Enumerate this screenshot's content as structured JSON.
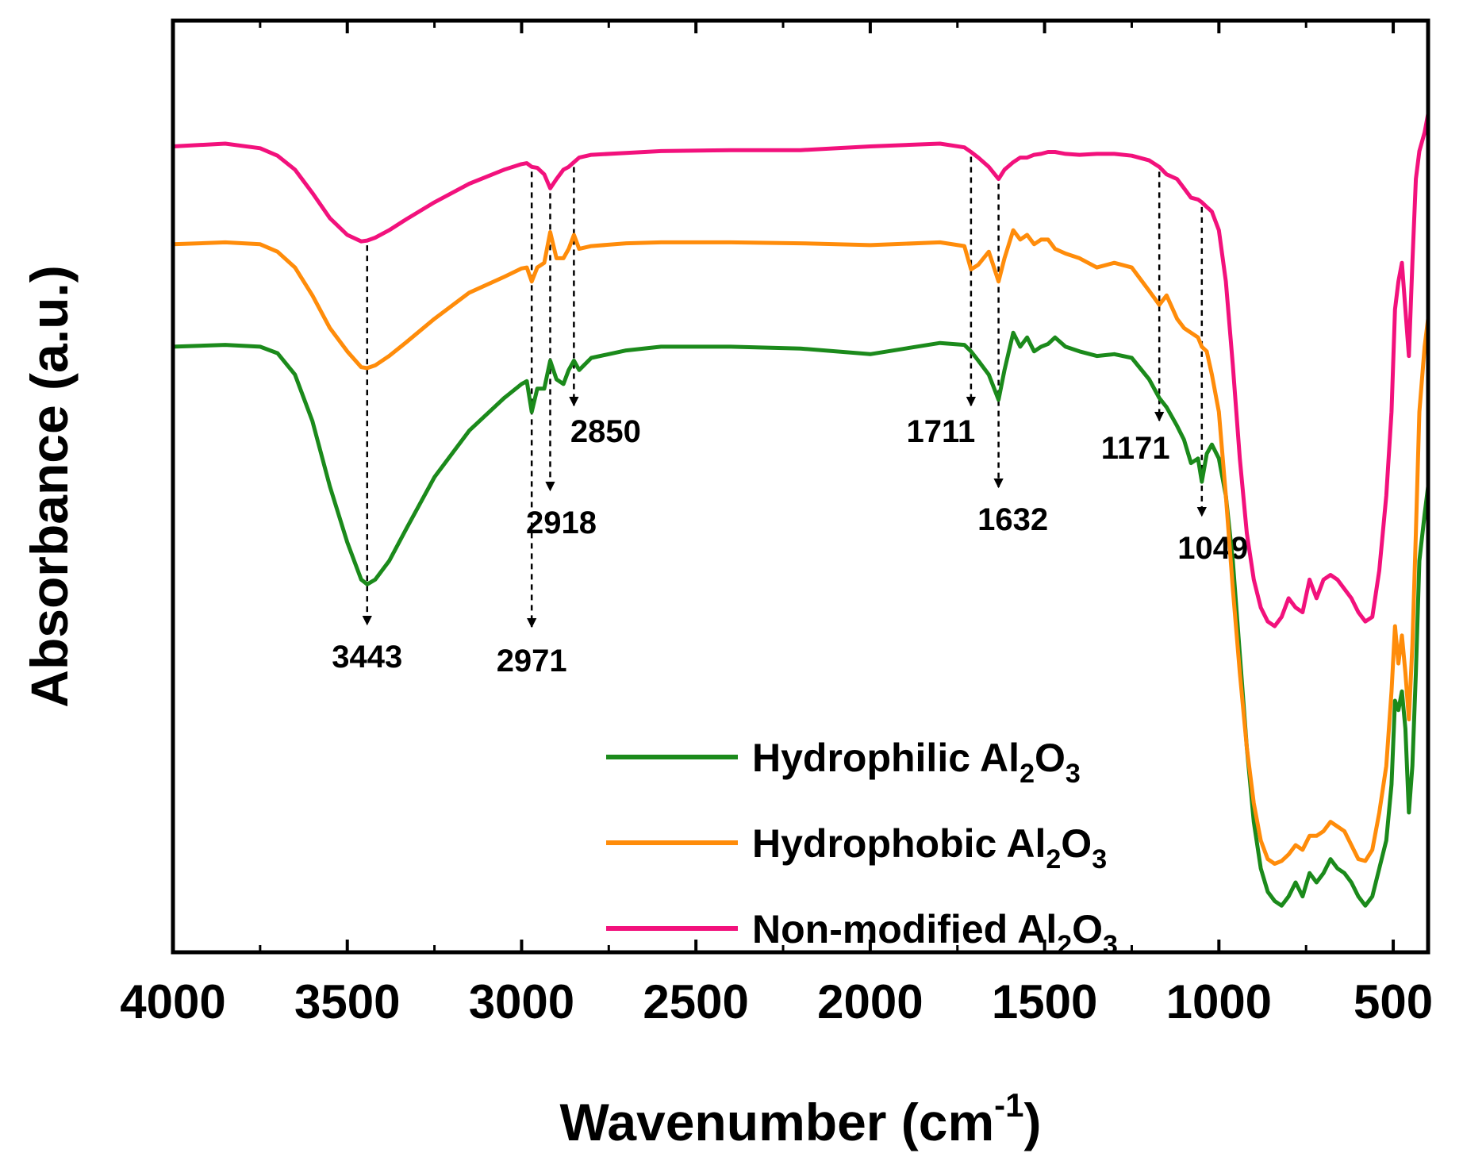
{
  "chart_data": {
    "type": "line",
    "title": "",
    "xlabel": "Wavenumber (cm",
    "xlabel_sup": "-1",
    "xlabel_close": ")",
    "ylabel": "Absorbance (a.u.)",
    "xlim": [
      4000,
      400
    ],
    "x_reversed": true,
    "x_ticks": [
      4000,
      3500,
      3000,
      2500,
      2000,
      1500,
      1000,
      500
    ],
    "ylim": [
      0,
      100
    ],
    "y_ticks_shown": false,
    "grid": false,
    "legend_position": "bottom-right",
    "series": [
      {
        "name": "Hydrophilic Al",
        "formula_parts": [
          "2",
          "O",
          "3"
        ],
        "color": "#1b8a1b",
        "x": [
          4000,
          3850,
          3750,
          3700,
          3650,
          3600,
          3550,
          3500,
          3460,
          3443,
          3420,
          3380,
          3330,
          3250,
          3150,
          3050,
          3000,
          2985,
          2971,
          2955,
          2935,
          2918,
          2900,
          2880,
          2865,
          2850,
          2835,
          2800,
          2700,
          2600,
          2400,
          2200,
          2000,
          1800,
          1730,
          1711,
          1690,
          1660,
          1632,
          1615,
          1590,
          1570,
          1550,
          1530,
          1510,
          1490,
          1470,
          1440,
          1400,
          1350,
          1300,
          1250,
          1200,
          1171,
          1150,
          1120,
          1100,
          1080,
          1060,
          1049,
          1035,
          1020,
          1000,
          980,
          960,
          940,
          920,
          900,
          880,
          860,
          840,
          820,
          800,
          780,
          760,
          740,
          720,
          700,
          680,
          660,
          640,
          620,
          600,
          580,
          560,
          540,
          520,
          505,
          495,
          485,
          475,
          465,
          455,
          445,
          435,
          425,
          410,
          400
        ],
        "y": [
          65.0,
          65.2,
          65.0,
          64.3,
          62.0,
          57.0,
          50.0,
          44.0,
          40.0,
          39.5,
          40.0,
          42.0,
          45.5,
          51.0,
          56.0,
          59.5,
          61.0,
          61.3,
          58.0,
          60.5,
          60.5,
          63.5,
          61.5,
          61.0,
          62.5,
          63.5,
          62.5,
          63.8,
          64.6,
          65.0,
          65.0,
          64.8,
          64.2,
          65.4,
          65.2,
          64.5,
          63.5,
          62.0,
          59.3,
          62.5,
          66.5,
          65.0,
          66.0,
          64.5,
          65.0,
          65.3,
          66.0,
          65.0,
          64.5,
          64.0,
          64.2,
          63.8,
          61.5,
          59.5,
          58.5,
          56.5,
          55.0,
          52.5,
          53.0,
          50.5,
          53.5,
          54.5,
          53.0,
          49.0,
          42.0,
          32.0,
          22.0,
          14.0,
          9.0,
          6.5,
          5.5,
          5.0,
          6.0,
          7.5,
          6.0,
          8.5,
          7.5,
          8.5,
          10.0,
          9.0,
          8.5,
          7.5,
          6.0,
          5.0,
          6.0,
          9.0,
          12.0,
          18.0,
          27.0,
          26.0,
          28.0,
          24.0,
          15.0,
          20.0,
          30.0,
          42.0,
          47.0,
          50.0
        ]
      },
      {
        "name": "Hydrophobic Al",
        "formula_parts": [
          "2",
          "O",
          "3"
        ],
        "color": "#ff8c0a",
        "x": [
          4000,
          3850,
          3750,
          3700,
          3650,
          3600,
          3550,
          3500,
          3460,
          3443,
          3420,
          3380,
          3330,
          3250,
          3150,
          3050,
          3000,
          2985,
          2971,
          2955,
          2935,
          2918,
          2900,
          2880,
          2865,
          2850,
          2835,
          2800,
          2700,
          2600,
          2400,
          2200,
          2000,
          1800,
          1730,
          1711,
          1690,
          1660,
          1632,
          1615,
          1590,
          1570,
          1550,
          1530,
          1510,
          1490,
          1470,
          1440,
          1400,
          1350,
          1300,
          1250,
          1200,
          1171,
          1150,
          1120,
          1100,
          1080,
          1060,
          1049,
          1035,
          1020,
          1000,
          980,
          960,
          940,
          920,
          900,
          880,
          860,
          840,
          820,
          800,
          780,
          760,
          740,
          720,
          700,
          680,
          660,
          640,
          620,
          600,
          580,
          560,
          540,
          520,
          505,
          495,
          485,
          475,
          465,
          455,
          445,
          435,
          425,
          410,
          400
        ],
        "y": [
          76.0,
          76.2,
          76.0,
          75.2,
          73.5,
          70.5,
          67.0,
          64.5,
          62.8,
          62.7,
          63.0,
          64.0,
          65.5,
          68.0,
          70.8,
          72.5,
          73.4,
          73.5,
          72.0,
          73.5,
          74.0,
          77.3,
          74.5,
          74.5,
          75.5,
          77.0,
          75.5,
          75.8,
          76.1,
          76.2,
          76.2,
          76.1,
          75.9,
          76.2,
          75.8,
          73.3,
          73.8,
          75.2,
          72.0,
          74.5,
          77.5,
          76.5,
          77.0,
          76.0,
          76.5,
          76.5,
          75.5,
          75.0,
          74.5,
          73.5,
          74.0,
          73.5,
          71.0,
          69.5,
          70.5,
          68.0,
          67.0,
          66.5,
          66.0,
          65.0,
          64.5,
          62.0,
          58.0,
          49.0,
          39.0,
          30.0,
          22.0,
          16.0,
          12.0,
          10.0,
          9.5,
          9.8,
          10.5,
          11.5,
          11.0,
          12.5,
          12.5,
          13.0,
          14.0,
          13.5,
          13.0,
          11.5,
          10.0,
          9.8,
          11.0,
          15.0,
          20.0,
          28.0,
          35.0,
          31.0,
          34.0,
          30.0,
          25.0,
          33.0,
          45.0,
          58.0,
          65.0,
          68.0
        ]
      },
      {
        "name": "Non-modified Al",
        "formula_parts": [
          "2",
          "O",
          "3"
        ],
        "color": "#f2117c",
        "x": [
          4000,
          3850,
          3750,
          3700,
          3650,
          3600,
          3550,
          3500,
          3460,
          3443,
          3420,
          3380,
          3330,
          3250,
          3150,
          3050,
          3000,
          2985,
          2971,
          2955,
          2935,
          2918,
          2900,
          2880,
          2865,
          2850,
          2835,
          2800,
          2700,
          2600,
          2400,
          2200,
          2000,
          1800,
          1730,
          1711,
          1690,
          1660,
          1632,
          1615,
          1590,
          1570,
          1550,
          1530,
          1510,
          1490,
          1470,
          1440,
          1400,
          1350,
          1300,
          1250,
          1200,
          1171,
          1150,
          1120,
          1100,
          1080,
          1060,
          1049,
          1035,
          1020,
          1000,
          980,
          960,
          940,
          920,
          900,
          880,
          860,
          840,
          820,
          800,
          780,
          760,
          740,
          720,
          700,
          680,
          660,
          640,
          620,
          600,
          580,
          560,
          540,
          520,
          505,
          495,
          485,
          475,
          465,
          455,
          445,
          435,
          425,
          410,
          400
        ],
        "y": [
          86.5,
          86.8,
          86.3,
          85.5,
          84.0,
          81.5,
          78.8,
          77.0,
          76.3,
          76.4,
          76.7,
          77.5,
          78.7,
          80.5,
          82.5,
          84.0,
          84.6,
          84.7,
          84.3,
          84.2,
          83.5,
          82.0,
          83.0,
          84.0,
          84.3,
          84.8,
          85.3,
          85.6,
          85.8,
          86.0,
          86.1,
          86.1,
          86.5,
          86.8,
          86.4,
          85.9,
          85.3,
          84.3,
          83.0,
          84.0,
          84.8,
          85.3,
          85.3,
          85.6,
          85.7,
          85.9,
          85.9,
          85.7,
          85.6,
          85.7,
          85.7,
          85.5,
          85.0,
          84.3,
          83.5,
          83.0,
          82.0,
          81.0,
          80.8,
          80.5,
          80.0,
          79.5,
          77.5,
          72.0,
          63.0,
          53.0,
          45.0,
          40.0,
          37.0,
          35.5,
          35.0,
          36.0,
          38.0,
          37.0,
          36.5,
          40.0,
          38.0,
          40.0,
          40.5,
          40.0,
          39.0,
          38.0,
          36.5,
          35.5,
          36.0,
          41.0,
          49.0,
          58.0,
          69.0,
          72.0,
          74.0,
          69.0,
          64.0,
          74.0,
          83.0,
          86.0,
          88.0,
          90.0
        ]
      }
    ],
    "annotations": [
      {
        "label": "3443",
        "x": 3443
      },
      {
        "label": "2971",
        "x": 2971
      },
      {
        "label": "2918",
        "x": 2918
      },
      {
        "label": "2850",
        "x": 2850
      },
      {
        "label": "1711",
        "x": 1711
      },
      {
        "label": "1632",
        "x": 1632
      },
      {
        "label": "1171",
        "x": 1171
      },
      {
        "label": "1049",
        "x": 1049
      }
    ]
  }
}
